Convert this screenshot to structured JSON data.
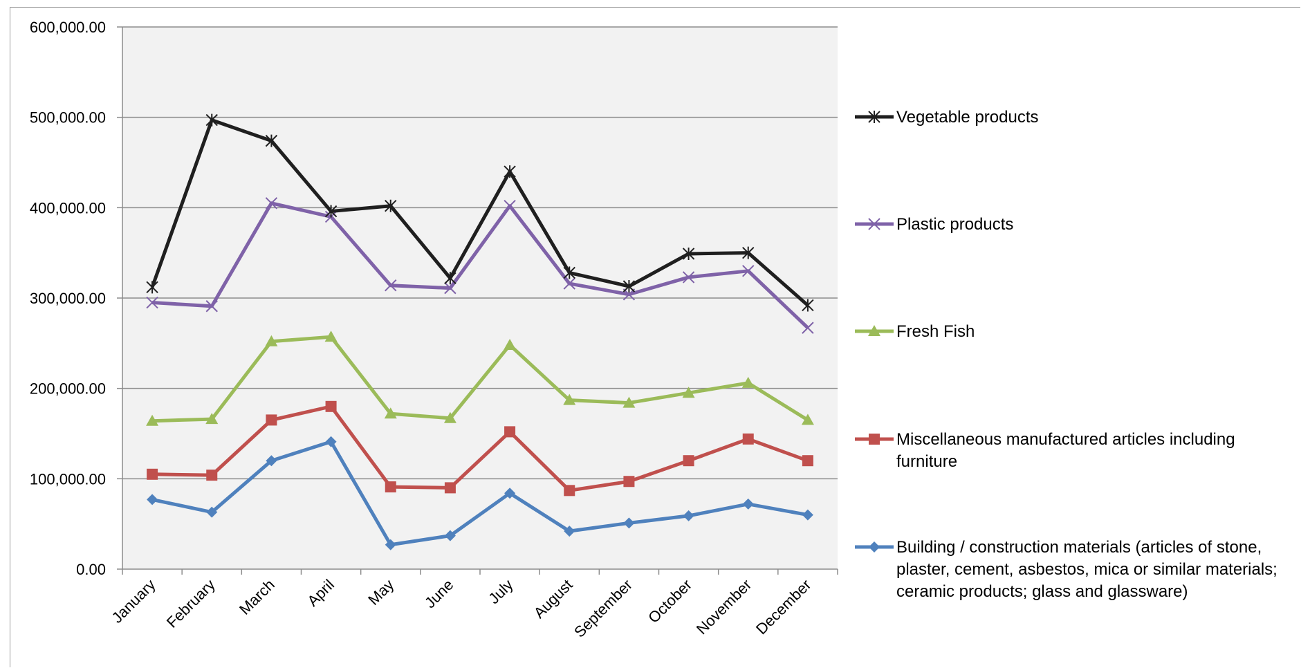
{
  "chart_data": {
    "type": "line",
    "title": "",
    "xlabel": "",
    "ylabel": "",
    "ylim": [
      0,
      600000
    ],
    "yticks": [
      0,
      100000,
      200000,
      300000,
      400000,
      500000,
      600000
    ],
    "ytick_labels": [
      "0.00",
      "100,000.00",
      "200,000.00",
      "300,000.00",
      "400,000.00",
      "500,000.00",
      "600,000.00"
    ],
    "grid": "horizontal",
    "legend_position": "right",
    "categories": [
      "January",
      "February",
      "March",
      "April",
      "May",
      "June",
      "July",
      "August",
      "September",
      "October",
      "November",
      "December"
    ],
    "series": [
      {
        "name": "Vegetable products",
        "legend_lines": [
          "Vegetable products"
        ],
        "color": "#1f1f1f",
        "marker": "star",
        "values": [
          312000,
          497000,
          474000,
          396000,
          402000,
          322000,
          440000,
          328000,
          313000,
          349000,
          350000,
          292000
        ]
      },
      {
        "name": "Plastic products",
        "legend_lines": [
          "Plastic products"
        ],
        "color": "#7f62a8",
        "marker": "x",
        "values": [
          295000,
          291000,
          405000,
          390000,
          314000,
          311000,
          402000,
          316000,
          304000,
          323000,
          330000,
          267000
        ]
      },
      {
        "name": "Fresh Fish",
        "legend_lines": [
          "Fresh Fish"
        ],
        "color": "#9bbb59",
        "marker": "triangle",
        "values": [
          164000,
          166000,
          252000,
          257000,
          172000,
          167000,
          248000,
          187000,
          184000,
          195000,
          206000,
          165000
        ]
      },
      {
        "name": "Miscellaneous manufactured articles including furniture",
        "legend_lines": [
          "Miscellaneous manufactured articles including",
          "furniture"
        ],
        "color": "#c0504d",
        "marker": "square",
        "values": [
          105000,
          104000,
          165000,
          180000,
          91000,
          90000,
          152000,
          87000,
          97000,
          120000,
          144000,
          120000
        ]
      },
      {
        "name": "Building / construction materials (articles of stone, plaster, cement, asbestos, mica or similar materials; ceramic products; glass and glassware)",
        "legend_lines": [
          "Building / construction materials (articles of stone,",
          "plaster, cement, asbestos, mica or similar materials;",
          "ceramic products; glass and glassware)"
        ],
        "color": "#4f81bd",
        "marker": "diamond",
        "values": [
          77000,
          63000,
          120000,
          141000,
          27000,
          37000,
          84000,
          42000,
          51000,
          59000,
          72000,
          60000
        ]
      }
    ]
  }
}
